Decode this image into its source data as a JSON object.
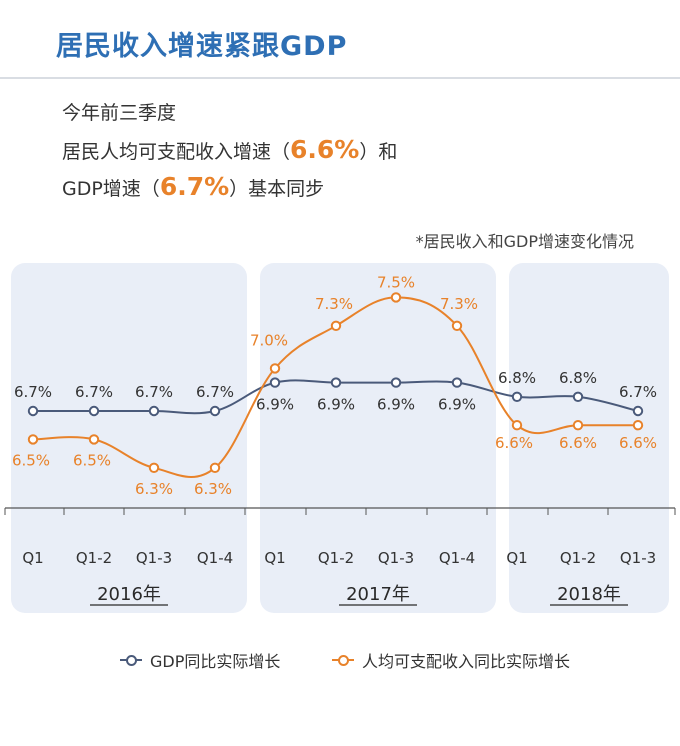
{
  "header": {
    "title": "居民收入增速紧跟GDP",
    "line1": "今年前三季度",
    "line2_pre": "居民人均可支配收入增速（",
    "line2_hl": "6.6%",
    "line2_post": "）和",
    "line3_pre": "GDP增速（",
    "line3_hl": "6.7%",
    "line3_post": "）基本同步",
    "note": "*居民收入和GDP增速变化情况"
  },
  "colors": {
    "gdp": "#4a5a7a",
    "income": "#e8822a",
    "panel": "#e9eef7",
    "title": "#2e6fb4"
  },
  "chart_data": {
    "type": "line",
    "categories": [
      "Q1",
      "Q1-2",
      "Q1-3",
      "Q1-4",
      "Q1",
      "Q1-2",
      "Q1-3",
      "Q1-4",
      "Q1",
      "Q1-2",
      "Q1-3"
    ],
    "groups": [
      {
        "label": "2016年",
        "count": 4
      },
      {
        "label": "2017年",
        "count": 4
      },
      {
        "label": "2018年",
        "count": 3
      }
    ],
    "series": [
      {
        "name": "GDP同比实际增长",
        "values": [
          6.7,
          6.7,
          6.7,
          6.7,
          6.9,
          6.9,
          6.9,
          6.9,
          6.8,
          6.8,
          6.7
        ],
        "labels": [
          "6.7%",
          "6.7%",
          "6.7%",
          "6.7%",
          "6.9%",
          "6.9%",
          "6.9%",
          "6.9%",
          "6.8%",
          "6.8%",
          "6.7%"
        ]
      },
      {
        "name": "人均可支配收入同比实际增长",
        "values": [
          6.5,
          6.5,
          6.3,
          6.3,
          7.0,
          7.3,
          7.5,
          7.3,
          6.6,
          6.6,
          6.6
        ],
        "labels": [
          "6.5%",
          "6.5%",
          "6.3%",
          "6.3%",
          "7.0%",
          "7.3%",
          "7.5%",
          "7.3%",
          "6.6%",
          "6.6%",
          "6.6%"
        ]
      }
    ],
    "legend": "bottom",
    "grid": false
  }
}
